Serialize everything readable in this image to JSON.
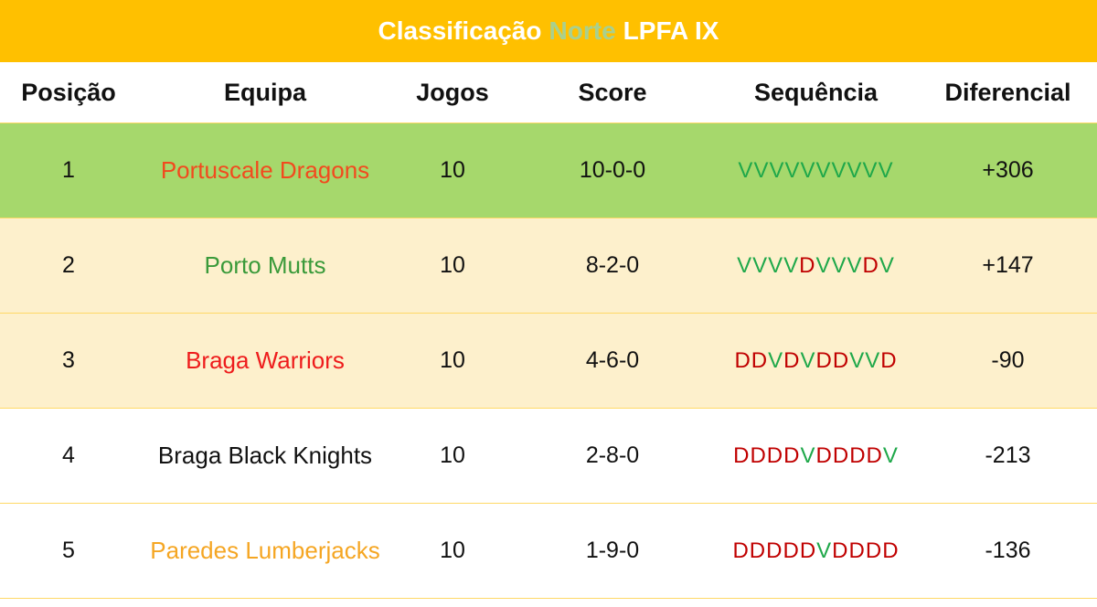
{
  "header": {
    "title": [
      "Classificação",
      "Norte",
      "LPFA IX"
    ],
    "title_colors": [
      "#ffffff",
      "#a9d08e",
      "#ffffff"
    ],
    "background": "#ffc000"
  },
  "table": {
    "columns": [
      "Posição",
      "Equipa",
      "Jogos",
      "Score",
      "Sequência",
      "Diferencial"
    ],
    "sequence_colors": {
      "V": "#1fa84a",
      "D": "#c00000"
    },
    "rows": [
      {
        "position": 1,
        "team": "Portuscale Dragons",
        "games": 10,
        "score": "10-0-0",
        "sequence": "VVVVVVVVVV",
        "differential": "+306",
        "team_color": "#f24a1e",
        "background": "#a6d86c"
      },
      {
        "position": 2,
        "team": "Porto Mutts",
        "games": 10,
        "score": "8-2-0",
        "sequence": "VVVVDVVVDV",
        "differential": "+147",
        "team_color": "#3a9a3a",
        "background": "#fdf0cc"
      },
      {
        "position": 3,
        "team": "Braga Warriors",
        "games": 10,
        "score": "4-6-0",
        "sequence": "DDVDVDDVVD",
        "differential": "-90",
        "team_color": "#ee1c1c",
        "background": "#fdf0cc"
      },
      {
        "position": 4,
        "team": "Braga Black Knights",
        "games": 10,
        "score": "2-8-0",
        "sequence": "DDDDVDDDDV",
        "differential": "-213",
        "team_color": "#111111",
        "background": "#ffffff"
      },
      {
        "position": 5,
        "team": "Paredes Lumberjacks",
        "games": 10,
        "score": "1-9-0",
        "sequence": "DDDDDVDDDD",
        "differential": "-136",
        "team_color": "#f5a623",
        "background": "#ffffff"
      }
    ]
  }
}
